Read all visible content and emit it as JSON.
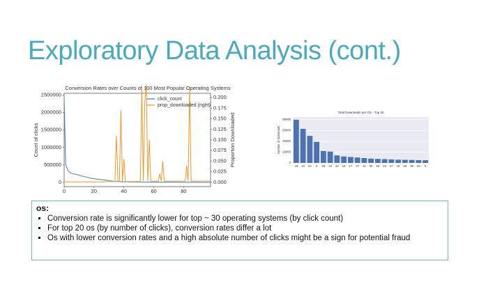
{
  "title": "Exploratory Data Analysis (cont.)",
  "chart_data": [
    {
      "type": "line",
      "title": "Conversion Rates over Counts of 100 Most Popular Operating Systems",
      "y_label": "Count of clicks",
      "y2_label": "Proportion Downloaded",
      "x": [
        0,
        1,
        2,
        3,
        4,
        5,
        6,
        7,
        8,
        9,
        10,
        11,
        12,
        13,
        14,
        15,
        16,
        17,
        18,
        19,
        20,
        21,
        22,
        23,
        24,
        25,
        26,
        27,
        28,
        29,
        30,
        31,
        32,
        33,
        34,
        35,
        36,
        37,
        38,
        39,
        40,
        41,
        42,
        43,
        44,
        45,
        46,
        47,
        48,
        49,
        50,
        51,
        52,
        53,
        54,
        55,
        56,
        57,
        58,
        59,
        60,
        61,
        62,
        63,
        64,
        65,
        66,
        67,
        68,
        69,
        70,
        71,
        72,
        73,
        74,
        75,
        76,
        77,
        78,
        79,
        80,
        81,
        82,
        83,
        84,
        85,
        86,
        87,
        88,
        89,
        90,
        91,
        92,
        93,
        94,
        95,
        96,
        97,
        98
      ],
      "xlim": [
        0,
        98
      ],
      "xticks": [
        0,
        20,
        40,
        60,
        80
      ],
      "ylim": [
        -120000,
        2550000
      ],
      "yticks": [
        0,
        500000,
        1000000,
        1500000,
        2000000,
        2500000
      ],
      "y2lim": [
        -0.01,
        0.21
      ],
      "y2ticks": [
        {
          "value": 0,
          "label": "0.000"
        },
        {
          "value": 0.025,
          "label": "0.025"
        },
        {
          "value": 0.05,
          "label": "0.050"
        },
        {
          "value": 0.075,
          "label": "0.075"
        },
        {
          "value": 0.1,
          "label": "0.100"
        },
        {
          "value": 0.125,
          "label": "0.125"
        },
        {
          "value": 0.15,
          "label": "0.150"
        },
        {
          "value": 0.175,
          "label": "0.175"
        },
        {
          "value": 0.2,
          "label": "0.200"
        }
      ],
      "series": [
        {
          "name": "click_count",
          "color": "#3a7fc1",
          "values": [
            2400000,
            520000,
            400000,
            310000,
            280000,
            260000,
            250000,
            240000,
            230000,
            220000,
            210000,
            190000,
            180000,
            170000,
            160000,
            150000,
            140000,
            130000,
            120000,
            115000,
            110000,
            100000,
            95000,
            90000,
            85000,
            80000,
            75000,
            70000,
            65000,
            60000,
            50000,
            45000,
            40000,
            35000,
            30000,
            28000,
            26000,
            24000,
            22000,
            20000,
            18000,
            17000,
            16000,
            15500,
            15000,
            14500,
            14000,
            13500,
            13000,
            12500,
            12000,
            11500,
            11000,
            10500,
            10000,
            9800,
            9600,
            9400,
            9200,
            9000,
            8800,
            8600,
            8400,
            8200,
            8000,
            7800,
            7600,
            7400,
            7200,
            7000,
            6800,
            6600,
            6400,
            6200,
            6000,
            5800,
            5600,
            5400,
            5200,
            5000,
            4800,
            4600,
            4400,
            4200,
            4000,
            3800,
            3600,
            3400,
            3200,
            3000,
            2800,
            2600,
            2400,
            2200,
            2000,
            1800,
            1600,
            1400,
            1200
          ]
        },
        {
          "name": "prop_downloaded (right)",
          "color": "#f0962e",
          "axis": "y2",
          "values": [
            0.001,
            0.001,
            0.001,
            0.001,
            0.001,
            0.001,
            0.001,
            0.001,
            0.001,
            0.001,
            0.001,
            0.001,
            0.001,
            0.001,
            0.001,
            0.001,
            0.001,
            0.001,
            0.001,
            0.001,
            0.001,
            0.001,
            0.001,
            0.001,
            0.001,
            0.001,
            0.001,
            0.001,
            0.002,
            0.002,
            0.002,
            0.002,
            0.002,
            0.002,
            0.003,
            0.11,
            0.002,
            0.002,
            0.17,
            0.002,
            0.055,
            0.002,
            0.002,
            0.002,
            0.002,
            0.002,
            0.002,
            0.002,
            0.002,
            0.002,
            0.002,
            0.002,
            0.22,
            0.003,
            0.19,
            0.23,
            0.003,
            0.1,
            0.003,
            0.003,
            0.003,
            0.003,
            0.003,
            0.003,
            0.02,
            0.003,
            0.05,
            0.003,
            0.003,
            0.003,
            0.003,
            0.003,
            0.003,
            0.003,
            0.003,
            0.003,
            0.003,
            0.003,
            0.003,
            0.003,
            0.003,
            0.003,
            0.04,
            0.003,
            0.22,
            0.003,
            0.003,
            0.003,
            0.003,
            0.003,
            0.003,
            0.003,
            0.003,
            0.003,
            0.003,
            0.003,
            0.003,
            0.003,
            0.003
          ]
        }
      ]
    },
    {
      "type": "bar",
      "title": "Total Downloads per OS - Top 20",
      "y_label": "Number of downloads",
      "categories": [
        "19",
        "13",
        "24",
        "0",
        "29",
        "10",
        "22",
        "18",
        "17",
        "37",
        "32",
        "30",
        "16",
        "23",
        "27",
        "15",
        "26",
        "36",
        "43",
        "6"
      ],
      "values": [
        80000,
        63000,
        50000,
        39000,
        22000,
        21000,
        14000,
        12000,
        11000,
        10000,
        9000,
        8000,
        7500,
        7000,
        6500,
        6000,
        5800,
        5500,
        5200,
        5000
      ],
      "color": "#4c72b0",
      "ylim": [
        0,
        85000
      ],
      "yticks": [
        0,
        20000,
        40000,
        60000,
        80000
      ],
      "grid": true
    }
  ],
  "notes": {
    "heading": "os:",
    "bullets": [
      "Conversion rate is significantly lower for top ~ 30 operating systems (by click count)",
      "For top 20 os (by number of clicks), conversion rates differ a lot",
      "Os with lower conversion rates and a high absolute number of clicks might be a sign for potential fraud"
    ]
  }
}
